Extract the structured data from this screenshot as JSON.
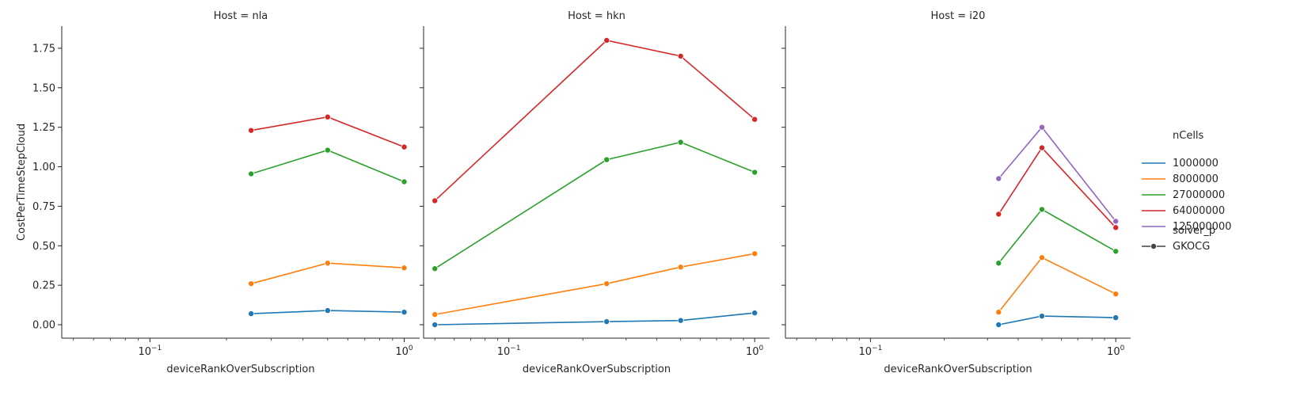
{
  "chart_data": {
    "type": "line",
    "x_scale": "log",
    "x_range": [
      0.045,
      1.15
    ],
    "y_range": [
      -0.085,
      1.89
    ],
    "x_ticks": [
      {
        "value": 0.1,
        "base": "10",
        "exp": "−1"
      },
      {
        "value": 1.0,
        "base": "10",
        "exp": "0"
      }
    ],
    "y_ticks": [
      {
        "value": 0.0,
        "label": "0.00"
      },
      {
        "value": 0.25,
        "label": "0.25"
      },
      {
        "value": 0.5,
        "label": "0.50"
      },
      {
        "value": 0.75,
        "label": "0.75"
      },
      {
        "value": 1.0,
        "label": "1.00"
      },
      {
        "value": 1.25,
        "label": "1.25"
      },
      {
        "value": 1.5,
        "label": "1.50"
      },
      {
        "value": 1.75,
        "label": "1.75"
      }
    ],
    "xlabel": "deviceRankOverSubscription",
    "ylabel": "CostPerTimeStepCloud",
    "legend": {
      "placement": "right",
      "hue_title": "nCells",
      "style_title": "solver_p",
      "style_entries": [
        "GKOCG"
      ]
    },
    "series_styles": [
      {
        "name": "1000000",
        "color": "#1f77b4"
      },
      {
        "name": "8000000",
        "color": "#ff7f0e"
      },
      {
        "name": "27000000",
        "color": "#2ca02c"
      },
      {
        "name": "64000000",
        "color": "#d62728"
      },
      {
        "name": "125000000",
        "color": "#9467bd"
      }
    ],
    "panels": [
      {
        "title": "Host = nla",
        "series": [
          {
            "name": "1000000",
            "x": [
              0.25,
              0.5,
              1.0
            ],
            "y": [
              0.07,
              0.09,
              0.08
            ]
          },
          {
            "name": "8000000",
            "x": [
              0.25,
              0.5,
              1.0
            ],
            "y": [
              0.26,
              0.39,
              0.36
            ]
          },
          {
            "name": "27000000",
            "x": [
              0.25,
              0.5,
              1.0
            ],
            "y": [
              0.955,
              1.105,
              0.905
            ]
          },
          {
            "name": "64000000",
            "x": [
              0.25,
              0.5,
              1.0
            ],
            "y": [
              1.23,
              1.315,
              1.125
            ]
          }
        ]
      },
      {
        "title": "Host = hkn",
        "series": [
          {
            "name": "1000000",
            "x": [
              0.05,
              0.25,
              0.5,
              1.0
            ],
            "y": [
              0.0,
              0.02,
              0.027,
              0.075
            ]
          },
          {
            "name": "8000000",
            "x": [
              0.05,
              0.25,
              0.5,
              1.0
            ],
            "y": [
              0.065,
              0.26,
              0.365,
              0.45
            ]
          },
          {
            "name": "27000000",
            "x": [
              0.05,
              0.25,
              0.5,
              1.0
            ],
            "y": [
              0.355,
              1.045,
              1.155,
              0.965
            ]
          },
          {
            "name": "64000000",
            "x": [
              0.05,
              0.25,
              0.5,
              1.0
            ],
            "y": [
              0.785,
              1.8,
              1.7,
              1.3
            ]
          }
        ]
      },
      {
        "title": "Host = i20",
        "series": [
          {
            "name": "1000000",
            "x": [
              0.333,
              0.5,
              1.0
            ],
            "y": [
              0.0,
              0.055,
              0.045
            ]
          },
          {
            "name": "8000000",
            "x": [
              0.333,
              0.5,
              1.0
            ],
            "y": [
              0.08,
              0.425,
              0.195
            ]
          },
          {
            "name": "27000000",
            "x": [
              0.333,
              0.5,
              1.0
            ],
            "y": [
              0.39,
              0.73,
              0.465
            ]
          },
          {
            "name": "64000000",
            "x": [
              0.333,
              0.5,
              1.0
            ],
            "y": [
              0.7,
              1.12,
              0.615
            ]
          },
          {
            "name": "125000000",
            "x": [
              0.333,
              0.5,
              1.0
            ],
            "y": [
              0.925,
              1.25,
              0.655
            ]
          }
        ]
      }
    ]
  }
}
